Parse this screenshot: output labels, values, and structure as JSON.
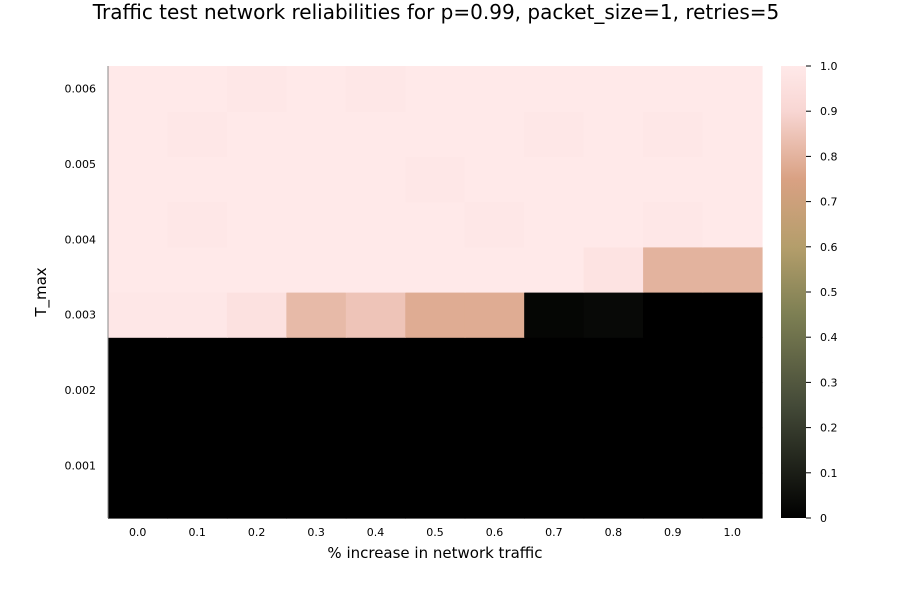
{
  "chart_data": {
    "type": "heatmap",
    "title": "Traffic test network reliabilities for p=0.99, packet_size=1, retries=5",
    "xlabel": "% increase in network traffic",
    "ylabel": "T_max",
    "x": [
      "0.0",
      "0.1",
      "0.2",
      "0.3",
      "0.4",
      "0.5",
      "0.6",
      "0.7",
      "0.8",
      "0.9",
      "1.0"
    ],
    "y": [
      0.0006,
      0.0012,
      0.0018,
      0.0024,
      0.003,
      0.0036,
      0.0042,
      0.0048,
      0.0054,
      0.006
    ],
    "x_ticks": [
      "0.0",
      "0.1",
      "0.2",
      "0.3",
      "0.4",
      "0.5",
      "0.6",
      "0.7",
      "0.8",
      "0.9",
      "1.0"
    ],
    "y_ticks": [
      "0.001",
      "0.002",
      "0.003",
      "0.004",
      "0.005",
      "0.006"
    ],
    "ylim": [
      0.0003,
      0.0063
    ],
    "colorbar": {
      "range": [
        0,
        1
      ],
      "ticks": [
        "0",
        "0.1",
        "0.2",
        "0.3",
        "0.4",
        "0.5",
        "0.6",
        "0.7",
        "0.8",
        "0.9",
        "1.0"
      ],
      "colors": [
        "#000000",
        "#444a38",
        "#7d7f53",
        "#b49e6b",
        "#d9a183",
        "#f8d6d3",
        "#ffe9e9"
      ],
      "stops": [
        0,
        0.25,
        0.45,
        0.6,
        0.75,
        0.9,
        1.0
      ]
    },
    "z": [
      [
        0,
        0,
        0,
        0,
        0,
        0,
        0,
        0,
        0,
        0,
        0
      ],
      [
        0,
        0,
        0,
        0,
        0,
        0,
        0,
        0,
        0,
        0,
        0
      ],
      [
        0,
        0,
        0,
        0,
        0,
        0,
        0,
        0,
        0,
        0,
        0
      ],
      [
        0,
        0,
        0,
        0,
        0,
        0,
        0,
        0,
        0,
        0,
        0
      ],
      [
        0.99,
        0.99,
        0.96,
        0.82,
        0.85,
        0.78,
        0.78,
        0.02,
        0.03,
        0,
        0
      ],
      [
        1.0,
        1.0,
        1.0,
        1.0,
        1.0,
        1.0,
        1.0,
        1.0,
        0.97,
        0.8,
        0.8
      ],
      [
        1.0,
        0.99,
        1.0,
        1.0,
        1.0,
        1.0,
        0.99,
        1.0,
        1.0,
        0.99,
        1.0
      ],
      [
        1.0,
        1.0,
        1.0,
        1.0,
        1.0,
        0.99,
        1.0,
        1.0,
        1.0,
        1.0,
        1.0
      ],
      [
        1.0,
        0.99,
        1.0,
        1.0,
        1.0,
        1.0,
        1.0,
        0.99,
        1.0,
        0.99,
        1.0
      ],
      [
        1.0,
        1.0,
        0.99,
        1.0,
        0.99,
        1.0,
        1.0,
        1.0,
        1.0,
        1.0,
        1.0
      ]
    ],
    "grid": false,
    "legend": "colorbar-right"
  }
}
